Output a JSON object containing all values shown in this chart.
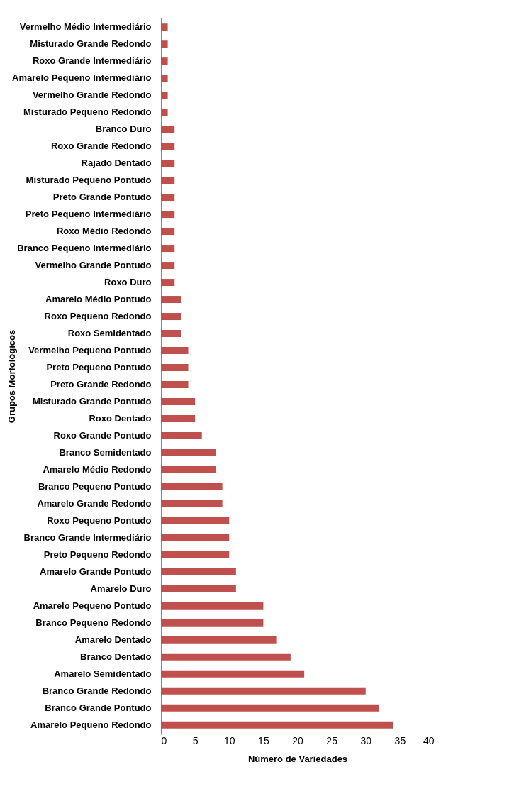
{
  "chart_data": {
    "type": "bar",
    "orientation": "horizontal",
    "xlabel": "Número de Variedades",
    "ylabel": "Grupos Morfológicos",
    "categories": [
      "Vermelho Médio Intermediário",
      "Misturado Grande Redondo",
      "Roxo Grande Intermediário",
      "Amarelo Pequeno Intermediário",
      "Vermelho Grande Redondo",
      "Misturado Pequeno Redondo",
      "Branco Duro",
      "Roxo Grande Redondo",
      "Rajado Dentado",
      "Misturado Pequeno Pontudo",
      "Preto Grande Pontudo",
      "Preto Pequeno Intermediário",
      "Roxo Médio Redondo",
      "Branco Pequeno Intermediário",
      "Vermelho Grande Pontudo",
      "Roxo Duro",
      "Amarelo Médio Pontudo",
      "Roxo Pequeno Redondo",
      "Roxo Semidentado",
      "Vermelho Pequeno Pontudo",
      "Preto Pequeno Pontudo",
      "Preto Grande Redondo",
      "Misturado Grande Pontudo",
      "Roxo Dentado",
      "Roxo Grande Pontudo",
      "Branco Semidentado",
      "Amarelo Médio Redondo",
      "Branco Pequeno Pontudo",
      "Amarelo Grande Redondo",
      "Roxo Pequeno Pontudo",
      "Branco Grande Intermediário",
      "Preto Pequeno Redondo",
      "Amarelo Grande Pontudo",
      "Amarelo Duro",
      "Amarelo Pequeno Pontudo",
      "Branco Pequeno Redondo",
      "Amarelo Dentado",
      "Branco Dentado",
      "Amarelo Semidentado",
      "Branco Grande Redondo",
      "Branco Grande Pontudo",
      "Amarelo Pequeno Redondo"
    ],
    "values": [
      1,
      1,
      1,
      1,
      1,
      1,
      2,
      2,
      2,
      2,
      2,
      2,
      2,
      2,
      2,
      2,
      3,
      3,
      3,
      4,
      4,
      4,
      5,
      5,
      6,
      8,
      8,
      9,
      9,
      10,
      10,
      10,
      11,
      11,
      15,
      15,
      17,
      19,
      21,
      30,
      32,
      34
    ],
    "color": "#c0504d",
    "xlim": [
      0,
      40
    ],
    "xticks": [
      0,
      5,
      10,
      15,
      20,
      25,
      30,
      35,
      40
    ],
    "grid": false
  }
}
